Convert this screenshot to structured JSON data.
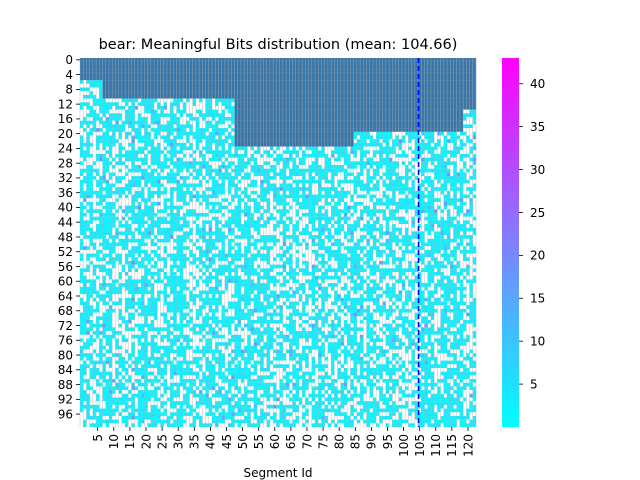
{
  "chart_data": {
    "type": "heatmap",
    "title": "bear: Meaningful Bits distribution (mean: 104.66)",
    "xlabel": "Segment Id",
    "ylabel": "",
    "n_cols": 123,
    "n_rows": 100,
    "x_ticks": [
      "5",
      "10",
      "15",
      "20",
      "25",
      "30",
      "35",
      "40",
      "45",
      "50",
      "55",
      "60",
      "65",
      "70",
      "75",
      "80",
      "85",
      "90",
      "95",
      "100",
      "105",
      "110",
      "115",
      "120"
    ],
    "y_ticks": [
      "0",
      "4",
      "8",
      "12",
      "16",
      "20",
      "24",
      "28",
      "32",
      "36",
      "40",
      "44",
      "48",
      "52",
      "56",
      "60",
      "64",
      "68",
      "72",
      "76",
      "80",
      "84",
      "88",
      "92",
      "96"
    ],
    "mean_line_x": 104.66,
    "mask_color": "#3a75a8",
    "zero_color": "#ffffff",
    "cmap": "cool",
    "colorbar": {
      "min": 0,
      "max": 43,
      "ticks": [
        "5",
        "10",
        "15",
        "20",
        "25",
        "30",
        "35",
        "40"
      ]
    },
    "meaningful_bits_start_row_ranges": [
      {
        "cols": [
          0,
          0
        ],
        "start_row": 6
      },
      {
        "cols": [
          1,
          6
        ],
        "start_row": 6
      },
      {
        "cols": [
          7,
          12
        ],
        "start_row": 11
      },
      {
        "cols": [
          13,
          47
        ],
        "start_row": 11
      },
      {
        "cols": [
          48,
          84
        ],
        "start_row": 24
      },
      {
        "cols": [
          85,
          118
        ],
        "start_row": 20
      },
      {
        "cols": [
          119,
          122
        ],
        "start_row": 14
      }
    ]
  }
}
